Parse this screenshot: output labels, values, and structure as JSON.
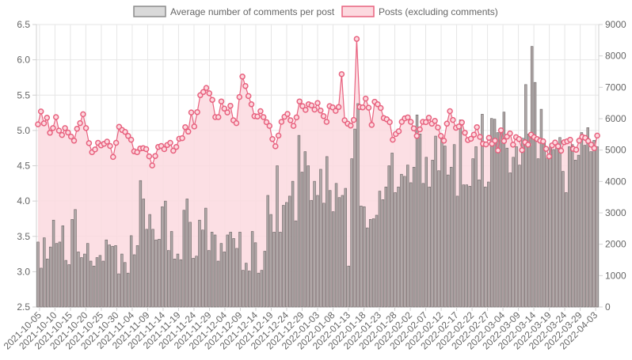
{
  "legend": {
    "placement": "top-center",
    "items": [
      {
        "label": "Average number of comments per post",
        "swatch_fill": "#d9d9d9",
        "swatch_stroke": "#8c8c8c"
      },
      {
        "label": "Posts (excluding comments)",
        "swatch_fill": "#fcd9df",
        "swatch_stroke": "#e8627f"
      }
    ]
  },
  "chart_data": {
    "type": "bar+line",
    "grid": true,
    "x_range": [
      "2021-10-04",
      "2022-04-04"
    ],
    "x_tick_labels": [
      "2021-10-05",
      "2021-10-10",
      "2021-10-15",
      "2021-10-20",
      "2021-10-25",
      "2021-10-30",
      "2021-11-04",
      "2021-11-09",
      "2021-11-14",
      "2021-11-19",
      "2021-11-24",
      "2021-11-29",
      "2021-12-04",
      "2021-12-09",
      "2021-12-14",
      "2021-12-19",
      "2021-12-24",
      "2021-12-29",
      "2022-01-03",
      "2022-01-08",
      "2022-01-13",
      "2022-01-18",
      "2022-01-23",
      "2022-01-28",
      "2022-02-02",
      "2022-02-07",
      "2022-02-12",
      "2022-02-17",
      "2022-02-22",
      "2022-02-27",
      "2022-03-04",
      "2022-03-09",
      "2022-03-14",
      "2022-03-19",
      "2022-03-24",
      "2022-03-29",
      "2022-04-03"
    ],
    "y_left": {
      "min": 2.5,
      "max": 6.5,
      "ticks": [
        "2.5",
        "3.0",
        "3.5",
        "4.0",
        "4.5",
        "5.0",
        "5.5",
        "6.0",
        "6.5"
      ],
      "series": "Average number of comments per post"
    },
    "y_right": {
      "min": 0,
      "max": 9000,
      "ticks": [
        "0",
        "1000",
        "2000",
        "3000",
        "4000",
        "5000",
        "6000",
        "7000",
        "8000",
        "9000"
      ],
      "series": "Posts (excluding comments)"
    },
    "series": [
      {
        "name": "Average number of comments per post",
        "kind": "bar",
        "axis": "left",
        "color": "#b0a8a8",
        "edge_color": "#6b6565",
        "values": [
          3.42,
          3.05,
          3.48,
          3.18,
          3.35,
          3.73,
          3.4,
          3.42,
          3.65,
          3.16,
          3.1,
          3.74,
          3.88,
          3.28,
          3.2,
          3.25,
          3.4,
          3.15,
          3.08,
          3.2,
          3.23,
          3.15,
          3.45,
          3.38,
          3.36,
          3.37,
          2.97,
          3.25,
          3.13,
          2.98,
          3.51,
          3.24,
          3.37,
          4.29,
          4.03,
          3.6,
          3.81,
          3.6,
          3.45,
          3.46,
          3.92,
          4.0,
          3.3,
          3.57,
          3.18,
          3.25,
          3.17,
          3.87,
          4.03,
          3.7,
          3.19,
          3.22,
          3.73,
          3.59,
          3.9,
          3.3,
          3.56,
          3.52,
          3.15,
          3.4,
          3.28,
          3.52,
          3.56,
          3.47,
          3.33,
          3.56,
          3.02,
          3.12,
          3.01,
          3.57,
          3.41,
          2.98,
          3.02,
          3.29,
          4.08,
          3.81,
          3.56,
          4.5,
          3.56,
          3.94,
          3.98,
          4.07,
          4.28,
          3.72,
          4.93,
          4.41,
          4.7,
          4.5,
          4.01,
          4.28,
          4.08,
          4.45,
          3.97,
          4.63,
          4.15,
          3.85,
          4.25,
          4.05,
          4.08,
          4.18,
          3.08,
          4.6,
          5.02,
          5.38,
          3.93,
          3.92,
          3.62,
          3.74,
          3.75,
          3.8,
          4.14,
          4.02,
          4.2,
          4.5,
          4.68,
          4.12,
          4.2,
          4.38,
          4.35,
          4.51,
          4.26,
          4.48,
          5.22,
          4.95,
          4.25,
          4.62,
          4.2,
          4.58,
          4.92,
          4.43,
          4.89,
          4.78,
          4.37,
          4.48,
          4.8,
          4.07,
          5.15,
          4.23,
          4.23,
          4.21,
          4.6,
          4.77,
          4.3,
          5.23,
          4.2,
          4.27,
          5.17,
          5.16,
          4.97,
          4.99,
          5.26,
          4.75,
          4.4,
          4.62,
          4.77,
          4.51,
          4.89,
          5.65,
          4.95,
          6.19,
          5.68,
          4.6,
          5.3,
          4.83,
          4.61,
          4.8,
          4.73,
          4.78,
          4.9,
          4.42,
          4.12,
          4.77,
          4.8,
          4.58,
          4.65,
          4.97,
          4.79,
          5.04,
          4.7,
          4.86,
          4.77
        ]
      },
      {
        "name": "Posts (excluding comments)",
        "kind": "line",
        "axis": "right",
        "color": "#e8627f",
        "fill": "#fcd9df",
        "values": [
          5820,
          6230,
          5850,
          6030,
          5550,
          5700,
          6050,
          5620,
          5480,
          5700,
          5560,
          5430,
          5300,
          5680,
          5860,
          6140,
          5700,
          5220,
          4930,
          5020,
          5230,
          5150,
          5200,
          5270,
          5130,
          4780,
          5230,
          5740,
          5640,
          5580,
          5450,
          5330,
          4960,
          4930,
          5050,
          5060,
          5030,
          4800,
          4510,
          4810,
          5100,
          5130,
          5030,
          5160,
          5230,
          4980,
          5100,
          5360,
          5380,
          5730,
          5590,
          6200,
          5750,
          6210,
          6750,
          6850,
          6980,
          6810,
          6600,
          6050,
          6050,
          6550,
          6320,
          6200,
          6410,
          5950,
          5860,
          6690,
          7340,
          7040,
          6720,
          6460,
          6080,
          6070,
          6240,
          6050,
          5890,
          5770,
          5350,
          5120,
          5460,
          5900,
          6060,
          6150,
          5950,
          5770,
          6040,
          6550,
          6400,
          6280,
          6460,
          6420,
          6290,
          6500,
          6260,
          6080,
          5900,
          6400,
          6360,
          6250,
          6370,
          7420,
          5950,
          5840,
          5780,
          5960,
          8540,
          6370,
          6360,
          6640,
          6350,
          5800,
          6540,
          6460,
          6340,
          6020,
          5980,
          5890,
          5330,
          5510,
          5600,
          5900,
          6010,
          6040,
          5900,
          5690,
          5450,
          5660,
          5900,
          5890,
          6030,
          5840,
          5930,
          5720,
          5450,
          5300,
          5840,
          6240,
          5960,
          5710,
          5750,
          5880,
          5550,
          5320,
          5360,
          5490,
          5730,
          5420,
          5200,
          5180,
          5390,
          5200,
          5300,
          4990,
          5630,
          5290,
          5430,
          5530,
          5170,
          5410,
          5350,
          5000,
          5250,
          5170,
          5490,
          5410,
          5350,
          5300,
          5280,
          5040,
          4800,
          5150,
          5240,
          5120,
          4980,
          5250,
          5280,
          5330,
          5040,
          5010,
          5300,
          5420,
          5390,
          5290,
          5170,
          5060,
          5460
        ]
      }
    ]
  }
}
